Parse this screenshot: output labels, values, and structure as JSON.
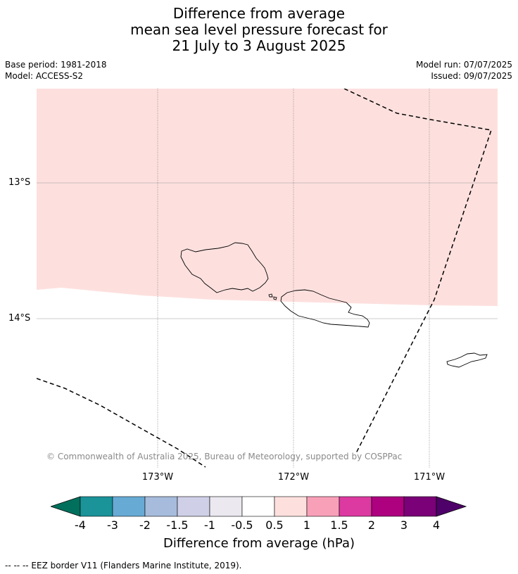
{
  "title": {
    "line1": "Difference from average",
    "line2": "mean sea level pressure forecast for",
    "line3": "21 July to 3 August 2025"
  },
  "meta": {
    "base_period": "Base period: 1981-2018",
    "model": "Model: ACCESS-S2",
    "model_run": "Model run: 07/07/2025",
    "issued": "Issued: 09/07/2025"
  },
  "map": {
    "lat_labels": [
      "13°S",
      "14°S"
    ],
    "lon_labels": [
      "173°W",
      "172°W",
      "171°W"
    ],
    "anomaly_fill_color": "#fde0de",
    "anomaly_class": "0.5 to 1",
    "copyright": "© Commonwealth of Australia 2025, Bureau of Meteorology, supported by COSPPac"
  },
  "colorbar": {
    "ticks": [
      "-4",
      "-3",
      "-2",
      "-1.5",
      "-1",
      "-0.5",
      "0.5",
      "1",
      "1.5",
      "2",
      "3",
      "4"
    ],
    "colors": [
      "#00705c",
      "#1a9399",
      "#67abd5",
      "#a7bcdc",
      "#cfd0e8",
      "#ebe8ef",
      "#ffffff",
      "#fde0de",
      "#f9a0b9",
      "#dc3aa0",
      "#ad0180",
      "#7a0177",
      "#4e0168"
    ],
    "label": "Difference from average (hPa)"
  },
  "footnote": "--  --  -- EEZ border V11 (Flanders Marine Institute, 2019)."
}
